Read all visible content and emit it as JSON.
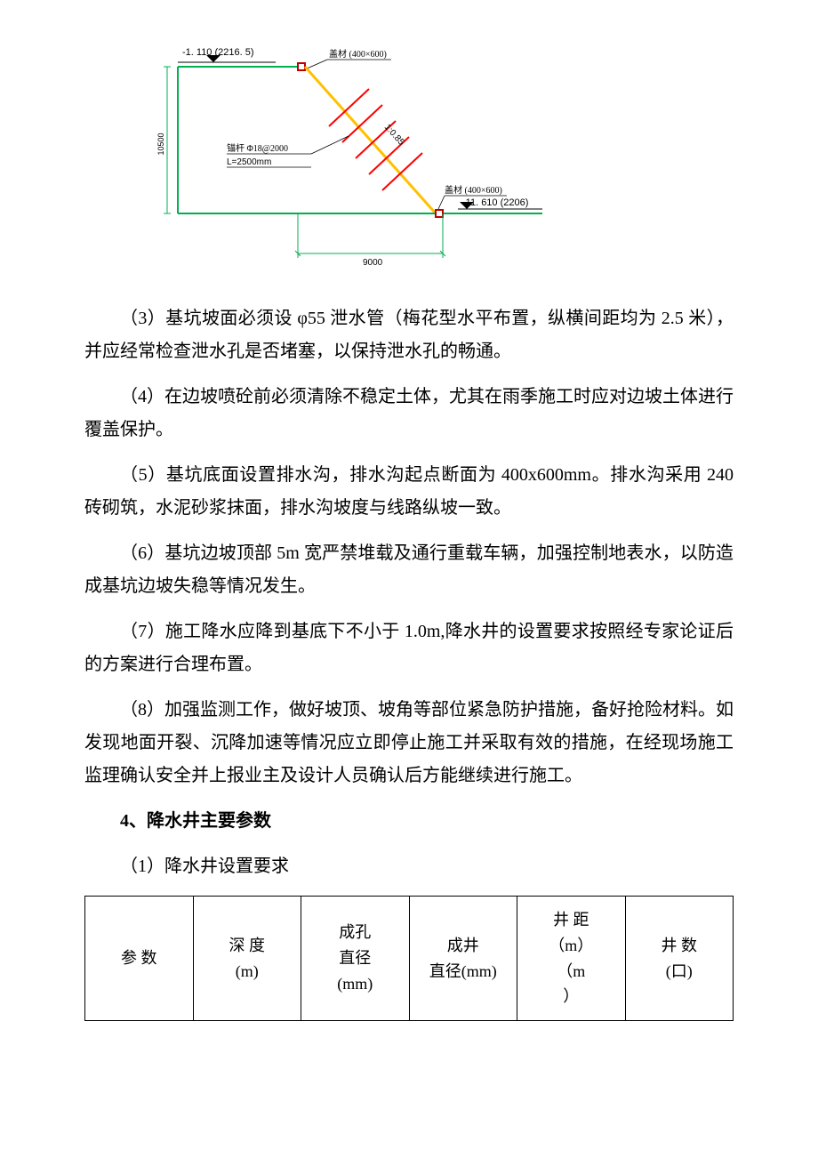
{
  "diagram": {
    "top_level_label": "-1. 110 (2216. 5)",
    "top_material_label": "盖材 (400×600)",
    "bottom_material_label": "盖材 (400×600)",
    "bottom_level_label": "-11. 610 (2206)",
    "anchor_title": "锚杆 Φ18@2000",
    "anchor_length": "L=2500mm",
    "slope_ratio": "1:0.85",
    "left_dimension": "10500",
    "bottom_dimension": "9000",
    "colors": {
      "green_line": "#00b050",
      "yellow_line": "#ffc000",
      "red_line": "#ff0000",
      "red_box": "#c00000",
      "text": "#000000"
    },
    "line_widths": {
      "main": 2,
      "anchor": 2,
      "dimension": 1
    }
  },
  "paragraphs": {
    "p3": "（3）基坑坡面必须设 φ55 泄水管（梅花型水平布置，纵横间距均为 2.5 米），并应经常检查泄水孔是否堵塞，以保持泄水孔的畅通。",
    "p4": "（4）在边坡喷砼前必须清除不稳定土体，尤其在雨季施工时应对边坡土体进行覆盖保护。",
    "p5": "（5）基坑底面设置排水沟，排水沟起点断面为 400x600mm。排水沟采用 240 砖砌筑，水泥砂浆抹面，排水沟坡度与线路纵坡一致。",
    "p6": "（6）基坑边坡顶部 5m 宽严禁堆载及通行重载车辆，加强控制地表水，以防造成基坑边坡失稳等情况发生。",
    "p7": "（7）施工降水应降到基底下不小于 1.0m,降水井的设置要求按照经专家论证后的方案进行合理布置。",
    "p8": "（8）加强监测工作，做好坡顶、坡角等部位紧急防护措施，备好抢险材料。如发现地面开裂、沉降加速等情况应立即停止施工并采取有效的措施，在经现场施工监理确认安全并上报业主及设计人员确认后方能继续进行施工。"
  },
  "section4_heading": "4、降水井主要参数",
  "sub_heading_4_1": "（1）降水井设置要求",
  "table": {
    "columns": [
      "参 数",
      "深 度\n(m)",
      "成孔\n直径\n(mm)",
      "成井\n直径(mm)",
      "井 距\n（m）\n（m\n）",
      "井 数\n(口)"
    ]
  }
}
